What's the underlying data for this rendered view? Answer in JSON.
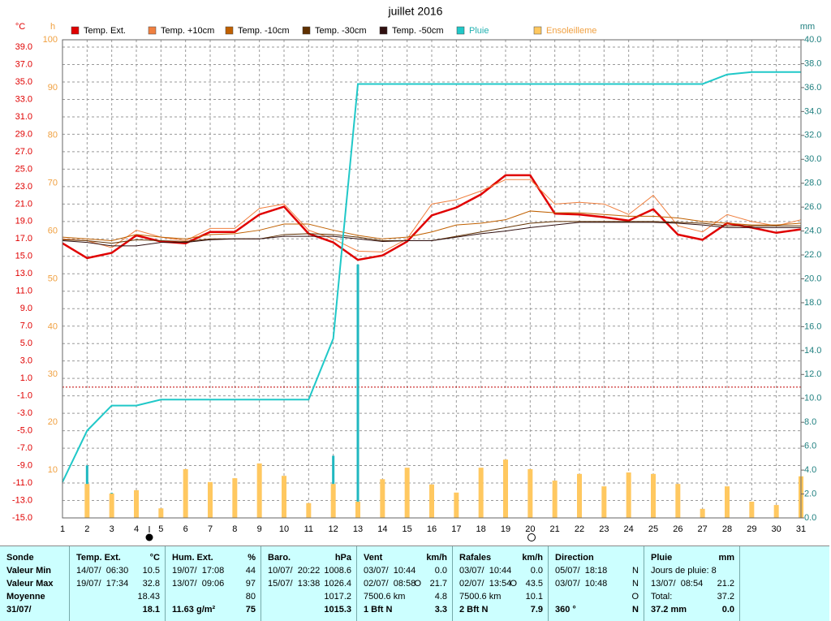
{
  "chart_data": {
    "type": "line",
    "title": "juillet 2016",
    "y_unit": "°C",
    "y2_unit": "h",
    "y3_unit": "mm",
    "x": [
      1,
      2,
      3,
      4,
      5,
      6,
      7,
      8,
      9,
      10,
      11,
      12,
      13,
      14,
      15,
      16,
      17,
      18,
      19,
      20,
      21,
      22,
      23,
      24,
      25,
      26,
      27,
      28,
      29,
      30,
      31
    ],
    "xlim": [
      1,
      31
    ],
    "xticks": [
      1,
      2,
      3,
      4,
      5,
      6,
      7,
      8,
      9,
      10,
      11,
      12,
      13,
      14,
      15,
      16,
      17,
      18,
      19,
      20,
      21,
      22,
      23,
      24,
      25,
      26,
      27,
      28,
      29,
      30,
      31
    ],
    "ylim": [
      -15,
      39.84
    ],
    "yticks": [
      {
        "value": -15,
        "label": "-15.0"
      },
      {
        "value": -13,
        "label": "-13.0"
      },
      {
        "value": -11,
        "label": "-11.0"
      },
      {
        "value": -9,
        "label": "-9.0"
      },
      {
        "value": -7,
        "label": "-7.0"
      },
      {
        "value": -5,
        "label": "-5.0"
      },
      {
        "value": -3,
        "label": "-3.0"
      },
      {
        "value": -1,
        "label": "-1.0"
      },
      {
        "value": 1,
        "label": "1.0"
      },
      {
        "value": 3,
        "label": "3.0"
      },
      {
        "value": 5,
        "label": "5.0"
      },
      {
        "value": 7,
        "label": "7.0"
      },
      {
        "value": 9,
        "label": "9.0"
      },
      {
        "value": 11,
        "label": "11.0"
      },
      {
        "value": 13,
        "label": "13.0"
      },
      {
        "value": 15,
        "label": "15.0"
      },
      {
        "value": 17,
        "label": "17.0"
      },
      {
        "value": 19,
        "label": "19.0"
      },
      {
        "value": 21,
        "label": "21.0"
      },
      {
        "value": 23,
        "label": "23.0"
      },
      {
        "value": 25,
        "label": "25.0"
      },
      {
        "value": 27,
        "label": "27.0"
      },
      {
        "value": 29,
        "label": "29.0"
      },
      {
        "value": 31,
        "label": "31.0"
      },
      {
        "value": 33,
        "label": "33.0"
      },
      {
        "value": 35,
        "label": "35.0"
      },
      {
        "value": 37,
        "label": "37.0"
      },
      {
        "value": 39,
        "label": "39.0"
      }
    ],
    "y2lim": [
      0,
      100
    ],
    "y2ticks": [
      10,
      20,
      30,
      40,
      50,
      60,
      70,
      80,
      90,
      100
    ],
    "y3lim": [
      0,
      40
    ],
    "y3ticks": [
      {
        "value": 0,
        "label": "0.0"
      },
      {
        "value": 2,
        "label": "2.0"
      },
      {
        "value": 4,
        "label": "4.0"
      },
      {
        "value": 6,
        "label": "6.0"
      },
      {
        "value": 8,
        "label": "8.0"
      },
      {
        "value": 10,
        "label": "10.0"
      },
      {
        "value": 12,
        "label": "12.0"
      },
      {
        "value": 14,
        "label": "14.0"
      },
      {
        "value": 16,
        "label": "16.0"
      },
      {
        "value": 18,
        "label": "18.0"
      },
      {
        "value": 20,
        "label": "20.0"
      },
      {
        "value": 22,
        "label": "22.0"
      },
      {
        "value": 24,
        "label": "24.0"
      },
      {
        "value": 26,
        "label": "26.0"
      },
      {
        "value": 28,
        "label": "28.0"
      },
      {
        "value": 30,
        "label": "30.0"
      },
      {
        "value": 32,
        "label": "32.0"
      },
      {
        "value": 34,
        "label": "34.0"
      },
      {
        "value": 36,
        "label": "36.0"
      },
      {
        "value": 38,
        "label": "38.0"
      },
      {
        "value": 40,
        "label": "40.0"
      }
    ],
    "grid": true,
    "series": [
      {
        "name": "Temp. Ext.",
        "color": "#e00000",
        "axis": "y",
        "kind": "line",
        "width": 2.5,
        "values": [
          16.5,
          14.8,
          15.4,
          17.4,
          16.7,
          16.5,
          17.8,
          17.8,
          19.8,
          20.7,
          17.6,
          16.6,
          14.6,
          15.1,
          16.7,
          19.7,
          20.6,
          22.1,
          24.3,
          24.3,
          19.9,
          19.8,
          19.5,
          19.1,
          20.4,
          17.5,
          16.9,
          18.8,
          18.3,
          17.7,
          18.1
        ]
      },
      {
        "name": "Temp. +10cm",
        "color": "#f08040",
        "axis": "y",
        "kind": "line",
        "width": 1,
        "values": [
          17.0,
          16.8,
          16.0,
          18.0,
          17.2,
          16.8,
          18.2,
          18.2,
          20.5,
          21.0,
          18.0,
          17.0,
          15.6,
          15.5,
          17.0,
          21.0,
          21.5,
          22.5,
          23.8,
          23.8,
          21.0,
          21.2,
          21.0,
          19.8,
          22.0,
          18.5,
          17.8,
          19.8,
          19.0,
          18.5,
          19.2
        ]
      },
      {
        "name": "Temp. -10cm",
        "color": "#c06000",
        "axis": "y",
        "kind": "line",
        "width": 1,
        "values": [
          17.2,
          17.0,
          16.8,
          17.5,
          17.2,
          17.0,
          17.5,
          17.6,
          18.0,
          18.7,
          18.7,
          18.0,
          17.4,
          17.0,
          17.2,
          17.8,
          18.6,
          18.8,
          19.2,
          20.2,
          20.0,
          20.0,
          19.8,
          19.6,
          19.6,
          19.4,
          19.0,
          18.8,
          18.6,
          18.6,
          18.8
        ]
      },
      {
        "name": "Temp. -30cm",
        "color": "#603000",
        "axis": "y",
        "kind": "line",
        "width": 1,
        "values": [
          16.9,
          16.8,
          16.5,
          16.9,
          16.8,
          16.7,
          17.0,
          17.0,
          17.0,
          17.5,
          17.6,
          17.5,
          17.2,
          16.8,
          16.8,
          16.8,
          17.3,
          17.8,
          18.3,
          18.8,
          19.0,
          19.0,
          19.0,
          19.0,
          19.0,
          18.9,
          18.8,
          18.5,
          18.5,
          18.5,
          18.5
        ]
      },
      {
        "name": "Temp. -50cm",
        "color": "#301010",
        "axis": "y",
        "kind": "line",
        "width": 1,
        "values": [
          16.8,
          16.6,
          16.2,
          16.2,
          16.6,
          16.6,
          16.9,
          17.0,
          17.0,
          17.3,
          17.3,
          17.3,
          17.0,
          16.7,
          16.8,
          16.8,
          17.2,
          17.6,
          17.9,
          18.3,
          18.6,
          18.9,
          18.9,
          18.9,
          18.9,
          18.8,
          18.6,
          18.3,
          18.3,
          18.3,
          18.3
        ]
      },
      {
        "name": "Pluie",
        "color": "#20c8c8",
        "axis": "y3",
        "kind": "line",
        "width": 2,
        "values": [
          3.0,
          7.3,
          9.4,
          9.4,
          9.9,
          9.9,
          9.9,
          9.9,
          9.9,
          9.9,
          9.9,
          15.0,
          36.3,
          36.3,
          36.3,
          36.3,
          36.3,
          36.3,
          36.3,
          36.3,
          36.3,
          36.3,
          36.3,
          36.3,
          36.3,
          36.3,
          36.3,
          37.1,
          37.3,
          37.3,
          37.3
        ],
        "daily_color": "#20b8c0",
        "daily": [
          0,
          4.4,
          2.1,
          0,
          0.5,
          0,
          0,
          0,
          0,
          0,
          0,
          5.2,
          21.2,
          0,
          0,
          0,
          0,
          0,
          0,
          0,
          0,
          0,
          0,
          0,
          0,
          0,
          0,
          0.8,
          0.2,
          0,
          0
        ]
      },
      {
        "name": "Ensoleilleme",
        "color": "#ffc860",
        "axis": "y2",
        "kind": "bar",
        "values": [
          0,
          7.1,
          5.1,
          5.8,
          2.0,
          10.2,
          7.5,
          8.3,
          11.4,
          8.8,
          3.1,
          7.1,
          3.4,
          8.1,
          10.5,
          7.0,
          5.3,
          10.5,
          12.2,
          10.2,
          7.8,
          9.2,
          6.6,
          9.5,
          9.2,
          7.1,
          1.9,
          6.6,
          3.4,
          2.7,
          8.7
        ]
      }
    ]
  },
  "table": {
    "columns": [
      {
        "header": {
          "l": "Sonde"
        },
        "rows": [
          {
            "l": "Valeur Min"
          },
          {
            "l": "Valeur Max"
          },
          {
            "l": "Moyenne"
          },
          {
            "l": "31/07/"
          }
        ]
      },
      {
        "header": {
          "l": "Temp. Ext.",
          "r": "°C"
        },
        "rows": [
          {
            "l": "14/07/  06:30",
            "r": "10.5"
          },
          {
            "l": "19/07/  17:34",
            "r": "32.8"
          },
          {
            "r": "18.43"
          },
          {
            "r": "18.1"
          }
        ]
      },
      {
        "header": {
          "l": "Hum. Ext.",
          "r": "%"
        },
        "rows": [
          {
            "l": "19/07/  17:08",
            "r": "44"
          },
          {
            "l": "13/07/  09:06",
            "r": "97"
          },
          {
            "r": "80"
          },
          {
            "l": "11.63 g/m²",
            "r": "75"
          }
        ]
      },
      {
        "header": {
          "l": "Baro.",
          "r": "hPa"
        },
        "rows": [
          {
            "l": "10/07/  20:22",
            "r": "1008.6"
          },
          {
            "l": "15/07/  13:38",
            "r": "1026.4"
          },
          {
            "r": "1017.2"
          },
          {
            "r": "1015.3"
          }
        ]
      },
      {
        "header": {
          "l": "Vent",
          "r": "km/h"
        },
        "rows": [
          {
            "l": "03/07/  10:44",
            "r": "0.0"
          },
          {
            "l": "02/07/  08:58",
            "m": "O",
            "r": "21.7"
          },
          {
            "l": "7500.6 km",
            "r": "4.8"
          },
          {
            "l": "1 Bft N",
            "r": "3.3"
          }
        ]
      },
      {
        "header": {
          "l": "Rafales",
          "r": "km/h"
        },
        "rows": [
          {
            "l": "03/07/  10:44",
            "r": "0.0"
          },
          {
            "l": "02/07/  13:54",
            "m": "O",
            "r": "43.5"
          },
          {
            "l": "7500.6 km",
            "r": "10.1"
          },
          {
            "l": "2 Bft N",
            "r": "7.9"
          }
        ]
      },
      {
        "header": {
          "l": "Direction"
        },
        "rows": [
          {
            "l": "05/07/  18:18",
            "r": "N"
          },
          {
            "l": "03/07/  10:48",
            "r": "N"
          },
          {
            "r": "O"
          },
          {
            "l": "360 °",
            "r": "N"
          }
        ]
      },
      {
        "header": {
          "l": "Pluie",
          "r": "mm"
        },
        "rows": [
          {
            "l": "Jours de pluie: 8"
          },
          {
            "l": "13/07/  08:54",
            "r": "21.2"
          },
          {
            "l": "Total:",
            "r": "37.2"
          },
          {
            "l": "37.2 mm",
            "r": "0.0"
          }
        ]
      }
    ]
  }
}
